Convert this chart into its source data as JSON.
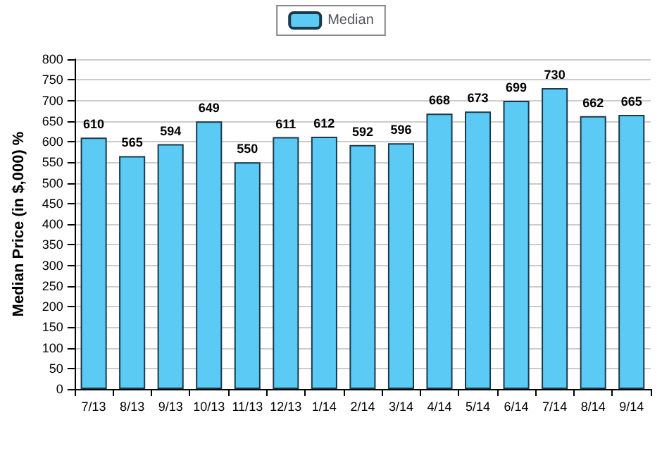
{
  "chart_data": {
    "type": "bar",
    "ylabel": "Median Price (in $,000) %",
    "categories": [
      "7/13",
      "8/13",
      "9/13",
      "10/13",
      "11/13",
      "12/13",
      "1/14",
      "2/14",
      "3/14",
      "4/14",
      "5/14",
      "6/14",
      "7/14",
      "8/14",
      "9/14"
    ],
    "series": [
      {
        "name": "Median",
        "color": "#5bcbf5",
        "values": [
          610,
          565,
          594,
          649,
          550,
          611,
          612,
          592,
          596,
          668,
          673,
          699,
          730,
          662,
          665
        ]
      }
    ],
    "ylim": [
      0,
      800
    ],
    "yticks": [
      0,
      50,
      100,
      150,
      200,
      250,
      300,
      350,
      400,
      450,
      500,
      550,
      600,
      650,
      700,
      750,
      800
    ],
    "grid": "y",
    "legend": "top",
    "data_labels": true
  }
}
